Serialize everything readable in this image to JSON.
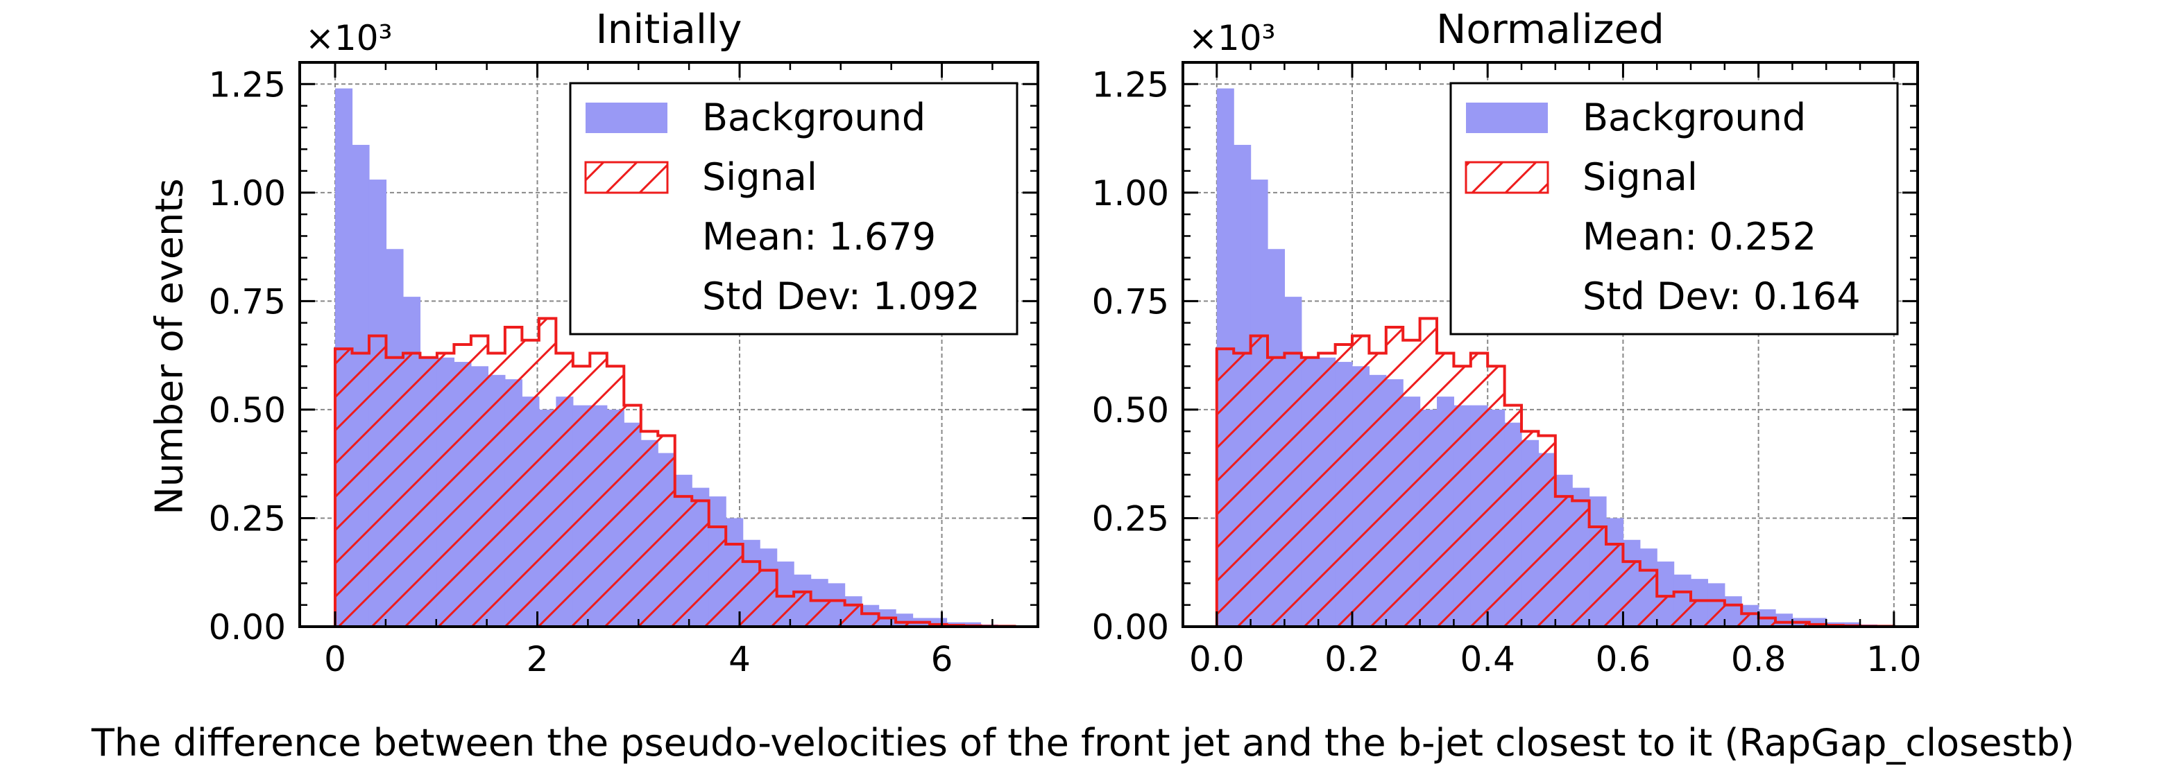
{
  "figure": {
    "xlabel": "The difference between the pseudo-velocities of the front jet and the b-jet closest to it (RapGap_closestb)",
    "ylabel": "Number of events"
  },
  "colors": {
    "background_fill": "#9999f5",
    "signal_edge": "#ee1c1c",
    "grid": "#888888"
  },
  "chart_data": [
    {
      "type": "histogram",
      "title": "Initially",
      "multiplier": "×10³",
      "xlim": [
        -0.35,
        6.95
      ],
      "ylim": [
        0,
        1.3
      ],
      "xticks": [
        0,
        2,
        4,
        6
      ],
      "xtick_labels": [
        "0",
        "2",
        "4",
        "6"
      ],
      "yticks": [
        0,
        0.25,
        0.5,
        0.75,
        1.0,
        1.25
      ],
      "ytick_labels": [
        "0.00",
        "0.25",
        "0.50",
        "0.75",
        "1.00",
        "1.25"
      ],
      "grid": true,
      "legend_position": "top-right",
      "legend": [
        "Background",
        "Signal",
        "Mean: 1.679",
        "Std Dev: 1.092"
      ],
      "bin_start": 0,
      "bin_width": 0.168,
      "series": [
        {
          "name": "Background",
          "style": "filled",
          "values": [
            1.24,
            1.11,
            1.03,
            0.87,
            0.76,
            0.62,
            0.62,
            0.61,
            0.6,
            0.58,
            0.57,
            0.53,
            0.5,
            0.53,
            0.51,
            0.51,
            0.5,
            0.47,
            0.43,
            0.4,
            0.35,
            0.32,
            0.3,
            0.25,
            0.2,
            0.18,
            0.15,
            0.12,
            0.11,
            0.1,
            0.07,
            0.05,
            0.04,
            0.03,
            0.02,
            0.02,
            0.01,
            0.01,
            0.005,
            0.004,
            0.003
          ]
        },
        {
          "name": "Signal",
          "style": "hatched",
          "values": [
            0.64,
            0.63,
            0.67,
            0.62,
            0.63,
            0.62,
            0.63,
            0.65,
            0.67,
            0.63,
            0.69,
            0.66,
            0.71,
            0.63,
            0.6,
            0.63,
            0.6,
            0.51,
            0.45,
            0.44,
            0.3,
            0.29,
            0.23,
            0.19,
            0.15,
            0.13,
            0.07,
            0.08,
            0.06,
            0.06,
            0.05,
            0.03,
            0.02,
            0.01,
            0.01,
            0.005,
            0.003,
            0.002,
            0.001,
            0.001,
            0.0
          ]
        }
      ]
    },
    {
      "type": "histogram",
      "title": "Normalized",
      "multiplier": "×10³",
      "xlim": [
        -0.05,
        1.035
      ],
      "ylim": [
        0,
        1.3
      ],
      "xticks": [
        0,
        0.2,
        0.4,
        0.6,
        0.8,
        1.0
      ],
      "xtick_labels": [
        "0.0",
        "0.2",
        "0.4",
        "0.6",
        "0.8",
        "1.0"
      ],
      "yticks": [
        0,
        0.25,
        0.5,
        0.75,
        1.0,
        1.25
      ],
      "ytick_labels": [
        "0.00",
        "0.25",
        "0.50",
        "0.75",
        "1.00",
        "1.25"
      ],
      "grid": true,
      "legend_position": "top-right",
      "legend": [
        "Background",
        "Signal",
        "Mean: 0.252",
        "Std Dev: 0.164"
      ],
      "bin_start": 0,
      "bin_width": 0.025,
      "series": [
        {
          "name": "Background",
          "style": "filled",
          "values": [
            1.24,
            1.11,
            1.03,
            0.87,
            0.76,
            0.62,
            0.62,
            0.61,
            0.6,
            0.58,
            0.57,
            0.53,
            0.5,
            0.53,
            0.51,
            0.51,
            0.5,
            0.47,
            0.43,
            0.4,
            0.35,
            0.32,
            0.3,
            0.25,
            0.2,
            0.18,
            0.15,
            0.12,
            0.11,
            0.1,
            0.07,
            0.05,
            0.04,
            0.03,
            0.02,
            0.02,
            0.01,
            0.01,
            0.005,
            0.004
          ]
        },
        {
          "name": "Signal",
          "style": "hatched",
          "values": [
            0.64,
            0.63,
            0.67,
            0.62,
            0.63,
            0.62,
            0.63,
            0.65,
            0.67,
            0.63,
            0.69,
            0.66,
            0.71,
            0.63,
            0.6,
            0.63,
            0.6,
            0.51,
            0.45,
            0.44,
            0.3,
            0.29,
            0.23,
            0.19,
            0.15,
            0.13,
            0.07,
            0.08,
            0.06,
            0.06,
            0.05,
            0.03,
            0.02,
            0.01,
            0.01,
            0.005,
            0.003,
            0.002,
            0.001,
            0.001
          ]
        }
      ]
    }
  ]
}
